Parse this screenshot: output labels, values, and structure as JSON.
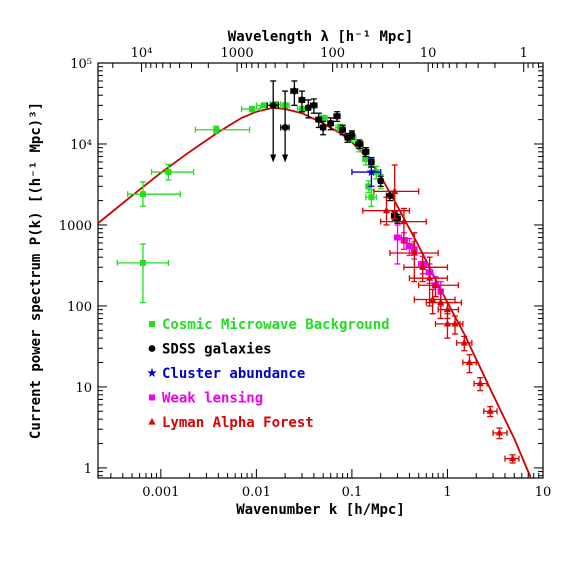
{
  "chart_data": {
    "type": "scatter",
    "xlabel": "Wavenumber k [h/Mpc]",
    "ylabel": "Current power spectrum P(k) [(h⁻¹ Mpc)³]",
    "top_xlabel": "Wavelength λ [h⁻¹ Mpc]",
    "xscale": "log",
    "yscale": "log",
    "xlim": [
      0.00022,
      10
    ],
    "ylim": [
      0.75,
      100000
    ],
    "x_ticks": [
      {
        "value": 0.001,
        "label": "0.001"
      },
      {
        "value": 0.01,
        "label": "0.01"
      },
      {
        "value": 0.1,
        "label": "0.1"
      },
      {
        "value": 1,
        "label": "1"
      },
      {
        "value": 10,
        "label": "10"
      }
    ],
    "y_ticks": [
      {
        "value": 1,
        "label": "1"
      },
      {
        "value": 10,
        "label": "10"
      },
      {
        "value": 100,
        "label": "100"
      },
      {
        "value": 1000,
        "label": "1000"
      },
      {
        "value": 10000,
        "label": "10⁴"
      },
      {
        "value": 100000,
        "label": "10⁵"
      }
    ],
    "top_ticks": [
      {
        "value": 10000,
        "label": "10⁴"
      },
      {
        "value": 1000,
        "label": "1000"
      },
      {
        "value": 100,
        "label": "100"
      },
      {
        "value": 10,
        "label": "10"
      },
      {
        "value": 1,
        "label": "1"
      }
    ],
    "legend_position": "lower-left",
    "series": [
      {
        "name": "Cosmic Microwave Background",
        "color": "#22dd22",
        "marker": "square",
        "points": [
          {
            "x": 0.00065,
            "y": 340,
            "xerr": [
              0.00035,
              0.0012
            ],
            "yerr": [
              110,
              580
            ]
          },
          {
            "x": 0.00065,
            "y": 2400,
            "xerr": [
              0.00045,
              0.0016
            ],
            "yerr": [
              1700,
              3400
            ]
          },
          {
            "x": 0.0012,
            "y": 4500,
            "xerr": [
              0.0008,
              0.0022
            ],
            "yerr": [
              3600,
              5600
            ]
          },
          {
            "x": 0.0038,
            "y": 15000,
            "xerr": [
              0.0023,
              0.0085
            ],
            "yerr": [
              13500,
              16500
            ]
          },
          {
            "x": 0.009,
            "y": 27000,
            "xerr": [
              0.007,
              0.011
            ],
            "yerr": [
              25000,
              29000
            ]
          },
          {
            "x": 0.012,
            "y": 30000,
            "xerr": [
              0.01,
              0.014
            ],
            "yerr": [
              28000,
              32000
            ]
          },
          {
            "x": 0.016,
            "y": 31000,
            "xerr": [
              0.014,
              0.018
            ],
            "yerr": [
              29000,
              33000
            ]
          },
          {
            "x": 0.02,
            "y": 30000,
            "xerr": [
              0.018,
              0.022
            ],
            "yerr": [
              28000,
              32000
            ]
          },
          {
            "x": 0.03,
            "y": 27000,
            "xerr": [
              0.027,
              0.033
            ],
            "yerr": [
              25000,
              29000
            ]
          },
          {
            "x": 0.05,
            "y": 21000,
            "xerr": [
              0.045,
              0.055
            ],
            "yerr": [
              19500,
              22500
            ]
          },
          {
            "x": 0.075,
            "y": 16000,
            "xerr": [
              0.068,
              0.082
            ],
            "yerr": [
              14500,
              17500
            ]
          },
          {
            "x": 0.1,
            "y": 12000,
            "xerr": [
              0.09,
              0.11
            ],
            "yerr": [
              10500,
              13500
            ]
          },
          {
            "x": 0.12,
            "y": 9500,
            "xerr": [
              0.11,
              0.13
            ],
            "yerr": [
              8000,
              11000
            ]
          },
          {
            "x": 0.14,
            "y": 6500,
            "xerr": [
              0.13,
              0.15
            ],
            "yerr": [
              5500,
              7500
            ]
          },
          {
            "x": 0.16,
            "y": 5500,
            "xerr": [
              0.15,
              0.17
            ],
            "yerr": [
              4500,
              6500
            ]
          },
          {
            "x": 0.18,
            "y": 4500,
            "xerr": [
              0.17,
              0.19
            ],
            "yerr": [
              3700,
              5300
            ]
          },
          {
            "x": 0.2,
            "y": 3500,
            "xerr": [
              0.19,
              0.21
            ],
            "yerr": [
              2800,
              4200
            ]
          },
          {
            "x": 0.15,
            "y": 3000,
            "xerr": [
              0.14,
              0.16
            ],
            "yerr": [
              2500,
              3500
            ]
          },
          {
            "x": 0.16,
            "y": 2200,
            "xerr": [
              0.14,
              0.18
            ],
            "yerr": [
              1700,
              2700
            ]
          }
        ]
      },
      {
        "name": "SDSS galaxies",
        "color": "#000000",
        "marker": "circle",
        "points": [
          {
            "x": 0.015,
            "y": 30000,
            "xerr": [
              0.013,
              0.017
            ],
            "yerr": [
              7000,
              60000
            ],
            "upper_arrow": true
          },
          {
            "x": 0.02,
            "y": 16000,
            "xerr": [
              0.018,
              0.022
            ],
            "yerr": [
              7000,
              45000
            ],
            "upper_arrow": true
          },
          {
            "x": 0.025,
            "y": 45000,
            "xerr": [
              0.023,
              0.027
            ],
            "yerr": [
              30000,
              60000
            ]
          },
          {
            "x": 0.03,
            "y": 35000,
            "xerr": [
              0.028,
              0.032
            ],
            "yerr": [
              25000,
              45000
            ]
          },
          {
            "x": 0.035,
            "y": 28000,
            "xerr": [
              0.033,
              0.037
            ],
            "yerr": [
              21000,
              35000
            ]
          },
          {
            "x": 0.04,
            "y": 30000,
            "xerr": [
              0.037,
              0.043
            ],
            "yerr": [
              24000,
              36000
            ]
          },
          {
            "x": 0.045,
            "y": 20000,
            "xerr": [
              0.042,
              0.048
            ],
            "yerr": [
              16000,
              24000
            ]
          },
          {
            "x": 0.05,
            "y": 16000,
            "xerr": [
              0.047,
              0.053
            ],
            "yerr": [
              13000,
              19000
            ]
          },
          {
            "x": 0.06,
            "y": 18000,
            "xerr": [
              0.056,
              0.064
            ],
            "yerr": [
              15000,
              21000
            ]
          },
          {
            "x": 0.07,
            "y": 22000,
            "xerr": [
              0.065,
              0.075
            ],
            "yerr": [
              19000,
              25000
            ]
          },
          {
            "x": 0.08,
            "y": 15000,
            "xerr": [
              0.075,
              0.085
            ],
            "yerr": [
              13000,
              17000
            ]
          },
          {
            "x": 0.09,
            "y": 12000,
            "xerr": [
              0.085,
              0.095
            ],
            "yerr": [
              10500,
              13500
            ]
          },
          {
            "x": 0.1,
            "y": 13000,
            "xerr": [
              0.095,
              0.105
            ],
            "yerr": [
              11500,
              14500
            ]
          },
          {
            "x": 0.12,
            "y": 10000,
            "xerr": [
              0.11,
              0.13
            ],
            "yerr": [
              8800,
              11200
            ]
          },
          {
            "x": 0.14,
            "y": 8000,
            "xerr": [
              0.13,
              0.15
            ],
            "yerr": [
              7000,
              9000
            ]
          },
          {
            "x": 0.16,
            "y": 6000,
            "xerr": [
              0.15,
              0.17
            ],
            "yerr": [
              5200,
              6800
            ]
          },
          {
            "x": 0.2,
            "y": 3500,
            "xerr": [
              0.19,
              0.21
            ],
            "yerr": [
              3000,
              4000
            ]
          },
          {
            "x": 0.25,
            "y": 2300,
            "xerr": [
              0.23,
              0.27
            ],
            "yerr": [
              2000,
              2600
            ]
          },
          {
            "x": 0.28,
            "y": 1300,
            "xerr": [
              0.26,
              0.3
            ],
            "yerr": [
              1150,
              1450
            ]
          },
          {
            "x": 0.3,
            "y": 1200,
            "xerr": [
              0.28,
              0.32
            ],
            "yerr": [
              1050,
              1350
            ]
          }
        ]
      },
      {
        "name": "Cluster abundance",
        "color": "#0000cc",
        "marker": "star",
        "points": [
          {
            "x": 0.16,
            "y": 4500,
            "xerr": [
              0.1,
              0.2
            ],
            "yerr": [
              3000,
              6500
            ]
          }
        ]
      },
      {
        "name": "Weak lensing",
        "color": "#ee00ee",
        "marker": "square",
        "points": [
          {
            "x": 0.3,
            "y": 700,
            "xerr": [
              0.28,
              0.33
            ],
            "yerr": [
              330,
              1000
            ]
          },
          {
            "x": 0.35,
            "y": 650,
            "xerr": [
              0.33,
              0.38
            ],
            "yerr": [
              500,
              800
            ]
          },
          {
            "x": 0.4,
            "y": 550,
            "xerr": [
              0.37,
              0.44
            ],
            "yerr": [
              420,
              680
            ]
          },
          {
            "x": 0.45,
            "y": 500,
            "xerr": [
              0.42,
              0.48
            ],
            "yerr": [
              380,
              620
            ]
          },
          {
            "x": 0.55,
            "y": 330,
            "xerr": [
              0.5,
              0.6
            ],
            "yerr": [
              250,
              410
            ]
          },
          {
            "x": 0.65,
            "y": 260,
            "xerr": [
              0.6,
              0.7
            ],
            "yerr": [
              190,
              330
            ]
          },
          {
            "x": 0.75,
            "y": 180,
            "xerr": [
              0.7,
              0.8
            ],
            "yerr": [
              130,
              230
            ]
          },
          {
            "x": 0.85,
            "y": 150,
            "xerr": [
              0.8,
              0.9
            ],
            "yerr": [
              100,
              200
            ]
          }
        ]
      },
      {
        "name": "Lyman Alpha Forest",
        "color": "#dd0000",
        "marker": "triangle",
        "points": [
          {
            "x": 0.23,
            "y": 1500,
            "xerr": [
              0.13,
              0.4
            ],
            "yerr": [
              1000,
              2200
            ]
          },
          {
            "x": 0.28,
            "y": 2600,
            "xerr": [
              0.17,
              0.5
            ],
            "yerr": [
              1200,
              5500
            ]
          },
          {
            "x": 0.35,
            "y": 1100,
            "xerr": [
              0.2,
              0.6
            ],
            "yerr": [
              600,
              1600
            ]
          },
          {
            "x": 0.45,
            "y": 450,
            "xerr": [
              0.25,
              0.8
            ],
            "yerr": [
              200,
              800
            ]
          },
          {
            "x": 0.55,
            "y": 300,
            "xerr": [
              0.35,
              1.0
            ],
            "yerr": [
              200,
              450
            ]
          },
          {
            "x": 0.65,
            "y": 220,
            "xerr": [
              0.4,
              1.0
            ],
            "yerr": [
              100,
              400
            ]
          },
          {
            "x": 0.7,
            "y": 120,
            "xerr": [
              0.45,
              1.2
            ],
            "yerr": [
              80,
              160
            ]
          },
          {
            "x": 0.75,
            "y": 180,
            "xerr": [
              0.5,
              1.3
            ],
            "yerr": [
              130,
              220
            ]
          },
          {
            "x": 0.85,
            "y": 110,
            "xerr": [
              0.6,
              1.4
            ],
            "yerr": [
              70,
              160
            ]
          },
          {
            "x": 1.0,
            "y": 60,
            "xerr": [
              0.75,
              1.35
            ],
            "yerr": [
              40,
              80
            ]
          },
          {
            "x": 1.0,
            "y": 90,
            "xerr": [
              0.8,
              1.3
            ],
            "yerr": [
              70,
              110
            ]
          },
          {
            "x": 1.2,
            "y": 60,
            "xerr": [
              1.0,
              1.45
            ],
            "yerr": [
              45,
              75
            ]
          },
          {
            "x": 1.5,
            "y": 35,
            "xerr": [
              1.25,
              1.8
            ],
            "yerr": [
              28,
              42
            ]
          },
          {
            "x": 1.7,
            "y": 20,
            "xerr": [
              1.45,
              2.0
            ],
            "yerr": [
              15,
              25
            ]
          },
          {
            "x": 2.2,
            "y": 11,
            "xerr": [
              1.9,
              2.6
            ],
            "yerr": [
              9,
              13
            ]
          },
          {
            "x": 2.8,
            "y": 5,
            "xerr": [
              2.4,
              3.3
            ],
            "yerr": [
              4.3,
              5.7
            ]
          },
          {
            "x": 3.5,
            "y": 2.7,
            "xerr": [
              3.0,
              4.2
            ],
            "yerr": [
              2.3,
              3.1
            ]
          },
          {
            "x": 4.8,
            "y": 1.3,
            "xerr": [
              4.0,
              5.6
            ],
            "yerr": [
              1.15,
              1.45
            ]
          }
        ]
      }
    ],
    "model_curve": {
      "color": "#cc0000",
      "points": [
        {
          "x": 0.00022,
          "y": 1050
        },
        {
          "x": 0.0005,
          "y": 2300
        },
        {
          "x": 0.001,
          "y": 4400
        },
        {
          "x": 0.002,
          "y": 8000
        },
        {
          "x": 0.004,
          "y": 14000
        },
        {
          "x": 0.007,
          "y": 21000
        },
        {
          "x": 0.01,
          "y": 25000
        },
        {
          "x": 0.015,
          "y": 28000
        },
        {
          "x": 0.02,
          "y": 27000
        },
        {
          "x": 0.03,
          "y": 24000
        },
        {
          "x": 0.05,
          "y": 18000
        },
        {
          "x": 0.08,
          "y": 13000
        },
        {
          "x": 0.1,
          "y": 10500
        },
        {
          "x": 0.15,
          "y": 6500
        },
        {
          "x": 0.2,
          "y": 4000
        },
        {
          "x": 0.3,
          "y": 1700
        },
        {
          "x": 0.5,
          "y": 550
        },
        {
          "x": 0.7,
          "y": 250
        },
        {
          "x": 1.0,
          "y": 110
        },
        {
          "x": 1.5,
          "y": 45
        },
        {
          "x": 2.0,
          "y": 22
        },
        {
          "x": 3.0,
          "y": 8
        },
        {
          "x": 5.0,
          "y": 2.3
        },
        {
          "x": 7.0,
          "y": 0.9
        },
        {
          "x": 7.5,
          "y": 0.75
        }
      ]
    }
  }
}
